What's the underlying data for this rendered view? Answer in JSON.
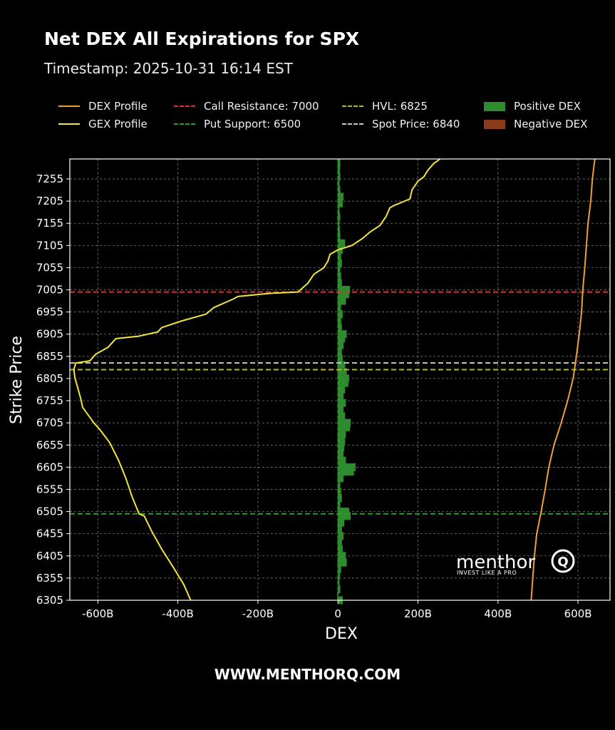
{
  "title": "Net DEX All Expirations for SPX",
  "timestamp": "Timestamp: 2025-10-31 16:14 EST",
  "footer": "WWW.MENTHORQ.COM",
  "watermark": {
    "brand": "menthor",
    "tagline": "INVEST LIKE A PRO",
    "mark": "Q"
  },
  "colors": {
    "background": "#000000",
    "dex_profile": "#f0a030",
    "gex_profile": "#f2e63a",
    "call_resistance": "#e03030",
    "put_support": "#2f9b2f",
    "hvl": "#b8b830",
    "spot": "#c8c8c8",
    "positive_dex": "#2e8b2e",
    "negative_dex": "#8b3a1a"
  },
  "legend": [
    {
      "label": "DEX Profile",
      "style": "line",
      "color": "#f0a030"
    },
    {
      "label": "Call Resistance: 7000",
      "style": "dashed",
      "color": "#e03030"
    },
    {
      "label": "HVL: 6825",
      "style": "dashed",
      "color": "#b8b830"
    },
    {
      "label": "Positive DEX",
      "style": "box",
      "color": "#2e8b2e"
    },
    {
      "label": "GEX Profile",
      "style": "line",
      "color": "#f2e63a"
    },
    {
      "label": "Put Support: 6500",
      "style": "dashed",
      "color": "#2f9b2f"
    },
    {
      "label": "Spot Price: 6840",
      "style": "dashed",
      "color": "#c8c8c8"
    },
    {
      "label": "Negative DEX",
      "style": "box",
      "color": "#8b3a1a"
    }
  ],
  "chart_data": {
    "type": "bar",
    "orientation": "horizontal",
    "xlabel": "DEX",
    "ylabel": "Strike Price",
    "xlim": [
      -670,
      680
    ],
    "ylim": [
      6305,
      7300
    ],
    "x_ticks": [
      -600,
      -400,
      -200,
      0,
      200,
      400,
      600
    ],
    "x_tick_labels": [
      "-600B",
      "-400B",
      "-200B",
      "0",
      "200B",
      "400B",
      "600B"
    ],
    "y_ticks": [
      6305,
      6355,
      6405,
      6455,
      6505,
      6555,
      6605,
      6655,
      6705,
      6755,
      6805,
      6855,
      6905,
      6955,
      7005,
      7055,
      7105,
      7155,
      7205,
      7255
    ],
    "y_tick_labels": [
      "6305",
      "6355",
      "6405",
      "6455",
      "6505",
      "6555",
      "6605",
      "6655",
      "6705",
      "6755",
      "6805",
      "6855",
      "6905",
      "6955",
      "7005",
      "7055",
      "7105",
      "7155",
      "7205",
      "7255"
    ],
    "grid": true,
    "levels": [
      {
        "name": "Call Resistance",
        "value": 7000,
        "color": "#e03030"
      },
      {
        "name": "Spot Price",
        "value": 6840,
        "color": "#c8c8c8"
      },
      {
        "name": "HVL",
        "value": 6825,
        "color": "#b8b830"
      },
      {
        "name": "Put Support",
        "value": 6500,
        "color": "#2f9b2f"
      }
    ],
    "bars": [
      [
        6305,
        12
      ],
      [
        6315,
        -2
      ],
      [
        6330,
        6
      ],
      [
        6345,
        4
      ],
      [
        6360,
        5
      ],
      [
        6375,
        8
      ],
      [
        6390,
        22
      ],
      [
        6405,
        20
      ],
      [
        6420,
        12
      ],
      [
        6435,
        10
      ],
      [
        6450,
        14
      ],
      [
        6465,
        10
      ],
      [
        6480,
        16
      ],
      [
        6495,
        32
      ],
      [
        6505,
        28
      ],
      [
        6520,
        6
      ],
      [
        6535,
        10
      ],
      [
        6550,
        8
      ],
      [
        6565,
        6
      ],
      [
        6580,
        14
      ],
      [
        6595,
        40
      ],
      [
        6605,
        44
      ],
      [
        6620,
        20
      ],
      [
        6635,
        14
      ],
      [
        6650,
        16
      ],
      [
        6665,
        18
      ],
      [
        6680,
        20
      ],
      [
        6695,
        30
      ],
      [
        6705,
        32
      ],
      [
        6720,
        18
      ],
      [
        6735,
        14
      ],
      [
        6750,
        20
      ],
      [
        6765,
        14
      ],
      [
        6780,
        18
      ],
      [
        6795,
        26
      ],
      [
        6805,
        28
      ],
      [
        6820,
        22
      ],
      [
        6835,
        18
      ],
      [
        6850,
        12
      ],
      [
        6865,
        10
      ],
      [
        6880,
        14
      ],
      [
        6895,
        18
      ],
      [
        6905,
        22
      ],
      [
        6920,
        10
      ],
      [
        6935,
        8
      ],
      [
        6950,
        12
      ],
      [
        6965,
        8
      ],
      [
        6980,
        20
      ],
      [
        6995,
        28
      ],
      [
        7005,
        30
      ],
      [
        7020,
        10
      ],
      [
        7035,
        8
      ],
      [
        7050,
        6
      ],
      [
        7065,
        10
      ],
      [
        7080,
        8
      ],
      [
        7095,
        12
      ],
      [
        7110,
        18
      ],
      [
        7125,
        6
      ],
      [
        7140,
        5
      ],
      [
        7155,
        4
      ],
      [
        7170,
        6
      ],
      [
        7185,
        4
      ],
      [
        7200,
        12
      ],
      [
        7215,
        14
      ],
      [
        7230,
        6
      ],
      [
        7245,
        4
      ],
      [
        7260,
        6
      ],
      [
        7275,
        5
      ],
      [
        7290,
        6
      ]
    ],
    "series": [
      {
        "name": "DEX Profile",
        "points": [
          [
            6305,
            483
          ],
          [
            6355,
            487
          ],
          [
            6405,
            491
          ],
          [
            6455,
            497
          ],
          [
            6505,
            508
          ],
          [
            6555,
            518
          ],
          [
            6605,
            527
          ],
          [
            6655,
            540
          ],
          [
            6705,
            558
          ],
          [
            6755,
            574
          ],
          [
            6805,
            588
          ],
          [
            6855,
            596
          ],
          [
            6905,
            603
          ],
          [
            6955,
            609
          ],
          [
            7005,
            612
          ],
          [
            7055,
            617
          ],
          [
            7105,
            621
          ],
          [
            7155,
            625
          ],
          [
            7205,
            632
          ],
          [
            7255,
            636
          ],
          [
            7300,
            642
          ]
        ]
      },
      {
        "name": "GEX Profile",
        "points": [
          [
            6305,
            -368
          ],
          [
            6340,
            -385
          ],
          [
            6380,
            -412
          ],
          [
            6420,
            -440
          ],
          [
            6460,
            -465
          ],
          [
            6495,
            -484
          ],
          [
            6500,
            -497
          ],
          [
            6540,
            -515
          ],
          [
            6580,
            -530
          ],
          [
            6620,
            -548
          ],
          [
            6660,
            -570
          ],
          [
            6690,
            -595
          ],
          [
            6705,
            -610
          ],
          [
            6740,
            -638
          ],
          [
            6760,
            -643
          ],
          [
            6790,
            -652
          ],
          [
            6805,
            -657
          ],
          [
            6825,
            -660
          ],
          [
            6840,
            -655
          ],
          [
            6845,
            -620
          ],
          [
            6860,
            -605
          ],
          [
            6875,
            -575
          ],
          [
            6885,
            -565
          ],
          [
            6895,
            -555
          ],
          [
            6900,
            -500
          ],
          [
            6910,
            -450
          ],
          [
            6920,
            -440
          ],
          [
            6935,
            -390
          ],
          [
            6950,
            -330
          ],
          [
            6965,
            -310
          ],
          [
            6985,
            -260
          ],
          [
            6990,
            -250
          ],
          [
            6997,
            -170
          ],
          [
            7000,
            -100
          ],
          [
            7020,
            -75
          ],
          [
            7040,
            -60
          ],
          [
            7055,
            -35
          ],
          [
            7070,
            -25
          ],
          [
            7085,
            -20
          ],
          [
            7095,
            0
          ],
          [
            7105,
            35
          ],
          [
            7120,
            60
          ],
          [
            7135,
            80
          ],
          [
            7150,
            105
          ],
          [
            7170,
            120
          ],
          [
            7190,
            130
          ],
          [
            7195,
            140
          ],
          [
            7210,
            180
          ],
          [
            7230,
            185
          ],
          [
            7250,
            200
          ],
          [
            7260,
            215
          ],
          [
            7275,
            225
          ],
          [
            7290,
            240
          ],
          [
            7300,
            255
          ]
        ]
      }
    ]
  }
}
